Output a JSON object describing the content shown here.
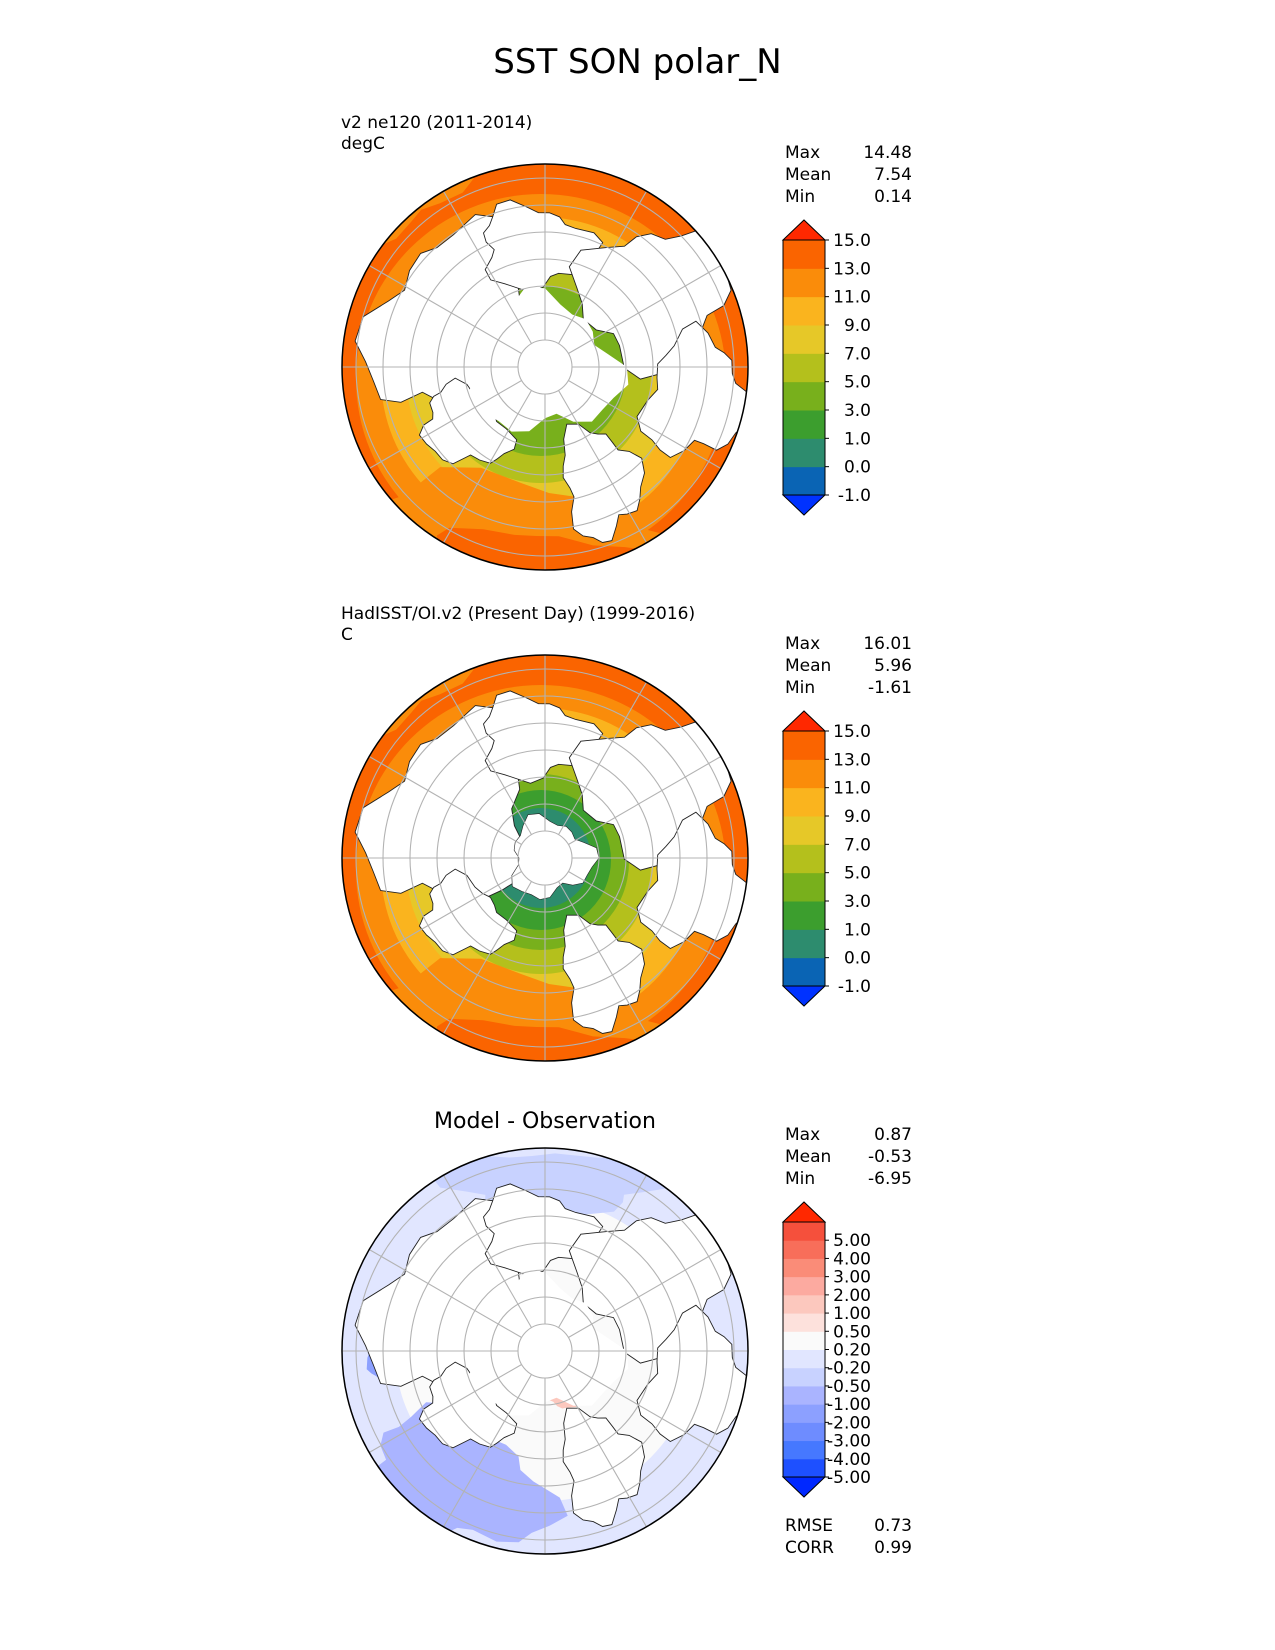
{
  "figure": {
    "title": "SST SON polar_N"
  },
  "colors": {
    "land": "#ffffff",
    "coast": "#222222",
    "grid": "#b3b3b3",
    "sst_palette": [
      "#0032ff",
      "#0a64b4",
      "#2d8c6e",
      "#3c9e2e",
      "#78b01c",
      "#b4c01c",
      "#e6c828",
      "#fab41e",
      "#fa8c0a",
      "#fa6400",
      "#ff2800"
    ],
    "diff_palette": [
      "#0028ff",
      "#1e50ff",
      "#4678ff",
      "#6e8cff",
      "#8ca0ff",
      "#aab4ff",
      "#c8d2ff",
      "#e1e6ff",
      "#fafafa",
      "#fde1dc",
      "#fcc8be",
      "#fcaaa0",
      "#fa8c78",
      "#f86e5a",
      "#f5503c",
      "#ff2800"
    ]
  },
  "chart_data": [
    {
      "type": "heatmap",
      "title_lines": [
        "v2 ne120 (2011-2014)",
        "degC"
      ],
      "stats": [
        {
          "label": "Max",
          "value": "14.48"
        },
        {
          "label": "Mean",
          "value": "7.54"
        },
        {
          "label": "Min",
          "value": "0.14"
        }
      ],
      "colorbar": {
        "levels": [
          "-1.0",
          "0.0",
          "1.0",
          "3.0",
          "5.0",
          "7.0",
          "9.0",
          "11.0",
          "13.0",
          "15.0"
        ],
        "extend": "both"
      },
      "map": "polar stereographic, North Pole"
    },
    {
      "type": "heatmap",
      "title_lines": [
        "HadISST/OI.v2 (Present Day) (1999-2016)",
        "C"
      ],
      "stats": [
        {
          "label": "Max",
          "value": "16.01"
        },
        {
          "label": "Mean",
          "value": "5.96"
        },
        {
          "label": "Min",
          "value": "-1.61"
        }
      ],
      "colorbar": {
        "levels": [
          "-1.0",
          "0.0",
          "1.0",
          "3.0",
          "5.0",
          "7.0",
          "9.0",
          "11.0",
          "13.0",
          "15.0"
        ],
        "extend": "both"
      },
      "map": "polar stereographic, North Pole"
    },
    {
      "type": "heatmap",
      "title": "Model - Observation",
      "stats": [
        {
          "label": "Max",
          "value": "0.87"
        },
        {
          "label": "Mean",
          "value": "-0.53"
        },
        {
          "label": "Min",
          "value": "-6.95"
        }
      ],
      "metrics": [
        {
          "label": "RMSE",
          "value": "0.73"
        },
        {
          "label": "CORR",
          "value": "0.99"
        }
      ],
      "colorbar": {
        "levels": [
          "-5.00",
          "-4.00",
          "-3.00",
          "-2.00",
          "-1.00",
          "-0.50",
          "-0.20",
          "0.20",
          "0.50",
          "1.00",
          "2.00",
          "3.00",
          "4.00",
          "5.00"
        ],
        "extend": "both"
      },
      "map": "polar stereographic, North Pole"
    }
  ]
}
